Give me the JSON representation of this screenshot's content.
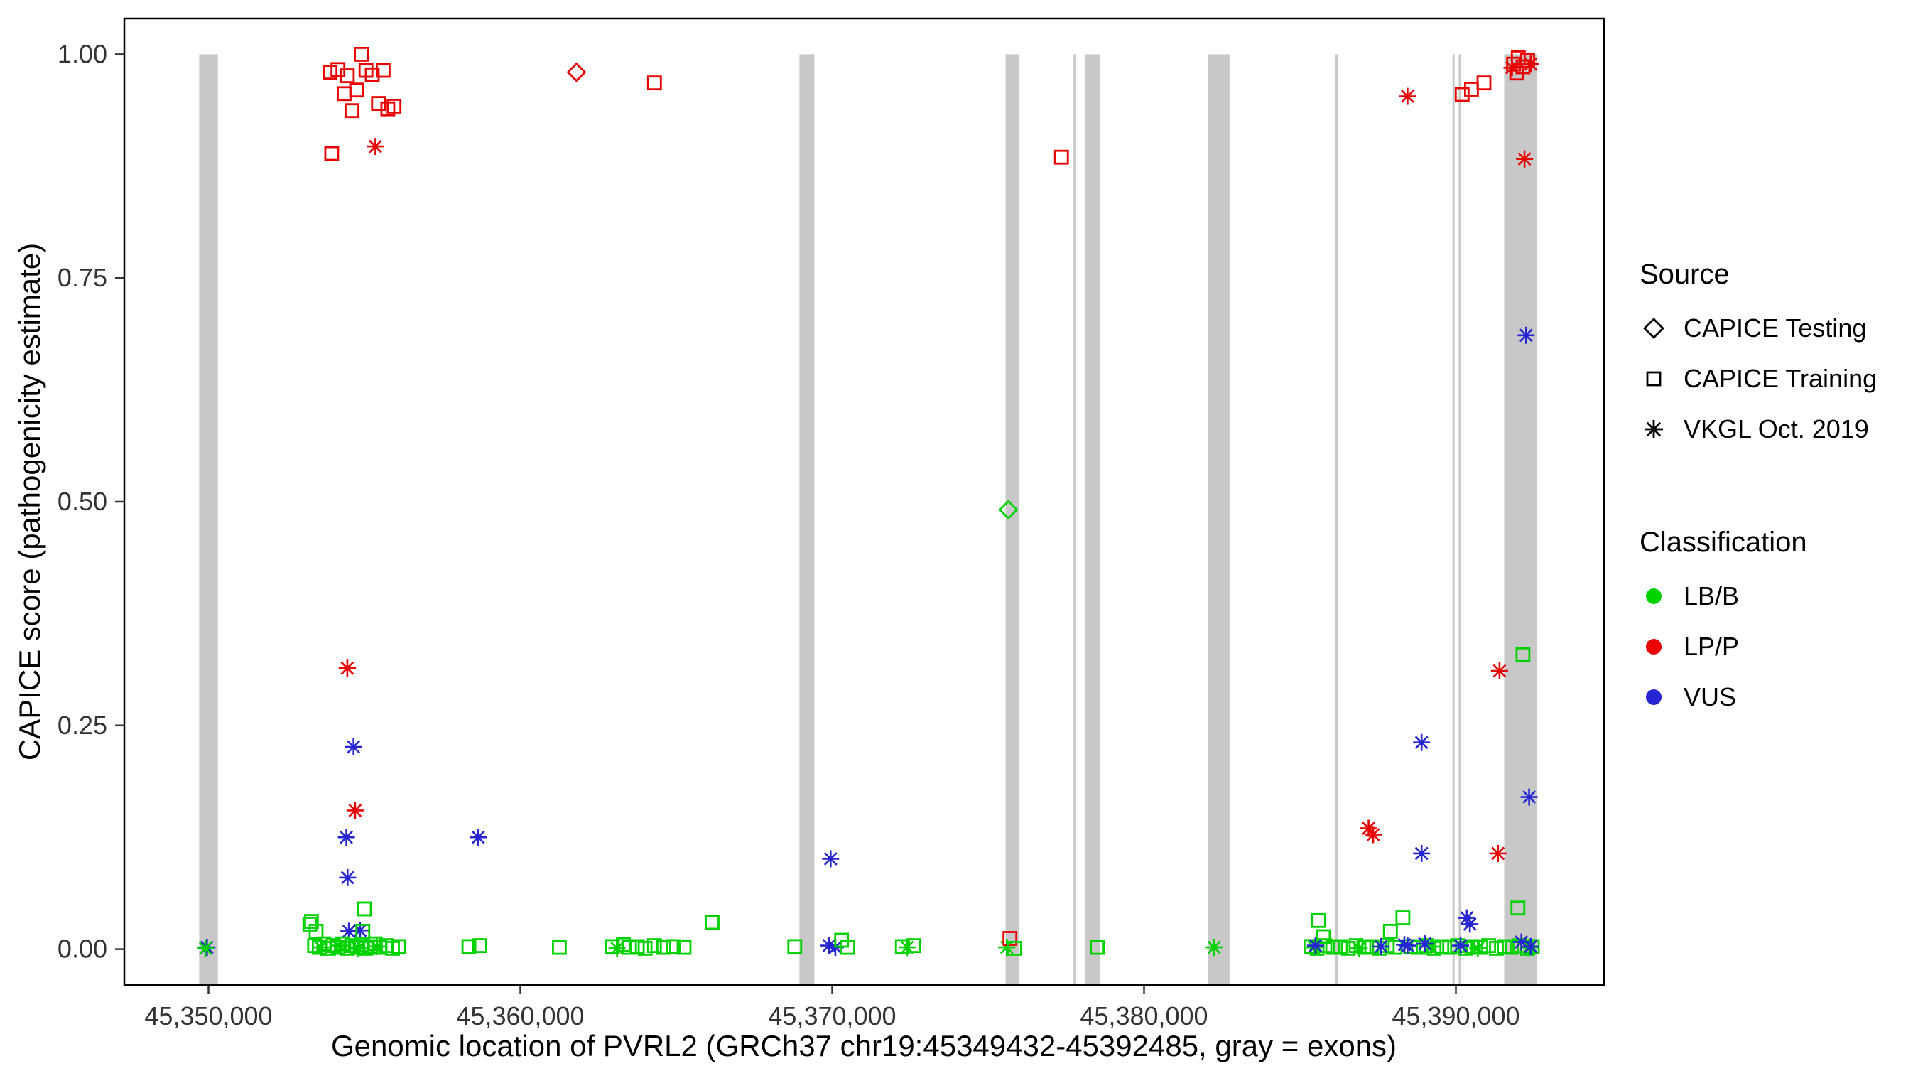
{
  "chart_data": {
    "type": "scatter",
    "title": "",
    "xlabel": "Genomic location of PVRL2 (GRCh37 chr19:45349432-45392485, gray = exons)",
    "ylabel": "CAPICE score (pathogenicity estimate)",
    "x_domain": [
      45347300,
      45394750
    ],
    "y_domain": [
      -0.04,
      1.04
    ],
    "x_ticks": [
      {
        "value": 45350000,
        "label": "45,350,000"
      },
      {
        "value": 45360000,
        "label": "45,360,000"
      },
      {
        "value": 45370000,
        "label": "45,370,000"
      },
      {
        "value": 45380000,
        "label": "45,380,000"
      },
      {
        "value": 45390000,
        "label": "45,390,000"
      }
    ],
    "y_ticks": [
      {
        "value": 0.0,
        "label": "0.00"
      },
      {
        "value": 0.25,
        "label": "0.25"
      },
      {
        "value": 0.5,
        "label": "0.50"
      },
      {
        "value": 0.75,
        "label": "0.75"
      },
      {
        "value": 1.0,
        "label": "1.00"
      }
    ],
    "colors": {
      "exon": "#C8C8C8",
      "LB/B": "#00D200",
      "LP/P": "#EA0000",
      "VUS": "#2525D2",
      "legend_marker": "#000000",
      "panel_border": "#000000",
      "tick_text": "#333333"
    },
    "legend": {
      "source": {
        "title": "Source",
        "items": [
          {
            "label": "CAPICE Testing",
            "marker": "diamond"
          },
          {
            "label": "CAPICE Training",
            "marker": "square"
          },
          {
            "label": "VKGL Oct. 2019",
            "marker": "asterisk"
          }
        ]
      },
      "classification": {
        "title": "Classification",
        "items": [
          {
            "label": "LB/B",
            "color": "#00D200"
          },
          {
            "label": "LP/P",
            "color": "#EA0000"
          },
          {
            "label": "VUS",
            "color": "#2525D2"
          }
        ]
      }
    },
    "exons": [
      [
        45349700,
        45350300
      ],
      [
        45368950,
        45369430
      ],
      [
        45375560,
        45376000
      ],
      [
        45377740,
        45377820
      ],
      [
        45378100,
        45378585
      ],
      [
        45382050,
        45382740
      ],
      [
        45386130,
        45386210
      ],
      [
        45389890,
        45389950
      ],
      [
        45390090,
        45390150
      ],
      [
        45391550,
        45392600
      ]
    ],
    "point_format": [
      "genomic_position",
      "capice_score",
      "source",
      "classification"
    ],
    "points": [
      [
        45353900,
        0.98,
        "training",
        "LP/P"
      ],
      [
        45354150,
        0.983,
        "training",
        "LP/P"
      ],
      [
        45354350,
        0.956,
        "training",
        "LP/P"
      ],
      [
        45354450,
        0.976,
        "training",
        "LP/P"
      ],
      [
        45354600,
        0.937,
        "training",
        "LP/P"
      ],
      [
        45354750,
        0.96,
        "training",
        "LP/P"
      ],
      [
        45354900,
        1.0,
        "training",
        "LP/P"
      ],
      [
        45355050,
        0.982,
        "training",
        "LP/P"
      ],
      [
        45355250,
        0.977,
        "training",
        "LP/P"
      ],
      [
        45355450,
        0.945,
        "training",
        "LP/P"
      ],
      [
        45355600,
        0.982,
        "training",
        "LP/P"
      ],
      [
        45355750,
        0.939,
        "training",
        "LP/P"
      ],
      [
        45355950,
        0.942,
        "training",
        "LP/P"
      ],
      [
        45353950,
        0.889,
        "training",
        "LP/P"
      ],
      [
        45355350,
        0.897,
        "vkgl",
        "LP/P"
      ],
      [
        45361800,
        0.98,
        "testing",
        "LP/P"
      ],
      [
        45364300,
        0.968,
        "training",
        "LP/P"
      ],
      [
        45377350,
        0.885,
        "training",
        "LP/P"
      ],
      [
        45375650,
        0.491,
        "testing",
        "LB/B"
      ],
      [
        45354450,
        0.314,
        "vkgl",
        "LP/P"
      ],
      [
        45354650,
        0.226,
        "vkgl",
        "VUS"
      ],
      [
        45354700,
        0.155,
        "vkgl",
        "LP/P"
      ],
      [
        45354420,
        0.125,
        "vkgl",
        "VUS"
      ],
      [
        45354460,
        0.08,
        "vkgl",
        "VUS"
      ],
      [
        45354500,
        0.02,
        "vkgl",
        "VUS"
      ],
      [
        45354860,
        0.021,
        "vkgl",
        "VUS"
      ],
      [
        45358650,
        0.125,
        "vkgl",
        "VUS"
      ],
      [
        45369950,
        0.101,
        "vkgl",
        "VUS"
      ],
      [
        45349950,
        0.002,
        "vkgl",
        "VUS"
      ],
      [
        45349900,
        0.001,
        "vkgl",
        "LB/B"
      ],
      [
        45353250,
        0.028,
        "training",
        "LB/B"
      ],
      [
        45353300,
        0.031,
        "training",
        "LB/B"
      ],
      [
        45353450,
        0.02,
        "training",
        "LB/B"
      ],
      [
        45355000,
        0.045,
        "training",
        "LB/B"
      ],
      [
        45354950,
        0.02,
        "training",
        "LB/B"
      ],
      [
        45353400,
        0.004,
        "training",
        "LB/B"
      ],
      [
        45353550,
        0.002,
        "training",
        "LB/B"
      ],
      [
        45353700,
        0.006,
        "training",
        "LB/B"
      ],
      [
        45353850,
        0.001,
        "training",
        "LB/B"
      ],
      [
        45354000,
        0.004,
        "training",
        "LB/B"
      ],
      [
        45354150,
        0.002,
        "training",
        "LB/B"
      ],
      [
        45354300,
        0.006,
        "training",
        "LB/B"
      ],
      [
        45354450,
        0.001,
        "training",
        "LB/B"
      ],
      [
        45354600,
        0.004,
        "training",
        "LB/B"
      ],
      [
        45354750,
        0.002,
        "training",
        "LB/B"
      ],
      [
        45354900,
        0.005,
        "training",
        "LB/B"
      ],
      [
        45355050,
        0.001,
        "training",
        "LB/B"
      ],
      [
        45355200,
        0.003,
        "training",
        "LB/B"
      ],
      [
        45355350,
        0.006,
        "training",
        "LB/B"
      ],
      [
        45355500,
        0.002,
        "training",
        "LB/B"
      ],
      [
        45355700,
        0.004,
        "training",
        "LB/B"
      ],
      [
        45355900,
        0.001,
        "training",
        "LB/B"
      ],
      [
        45356100,
        0.003,
        "training",
        "LB/B"
      ],
      [
        45353600,
        0.002,
        "vkgl",
        "LB/B"
      ],
      [
        45354200,
        0.004,
        "vkgl",
        "LB/B"
      ],
      [
        45354800,
        0.001,
        "vkgl",
        "LB/B"
      ],
      [
        45355400,
        0.003,
        "vkgl",
        "LB/B"
      ],
      [
        45358350,
        0.003,
        "training",
        "LB/B"
      ],
      [
        45358700,
        0.004,
        "training",
        "LB/B"
      ],
      [
        45361250,
        0.002,
        "training",
        "LB/B"
      ],
      [
        45362950,
        0.003,
        "training",
        "LB/B"
      ],
      [
        45363100,
        0.001,
        "vkgl",
        "LB/B"
      ],
      [
        45363300,
        0.005,
        "training",
        "LB/B"
      ],
      [
        45363500,
        0.002,
        "training",
        "LB/B"
      ],
      [
        45363750,
        0.003,
        "training",
        "LB/B"
      ],
      [
        45364000,
        0.001,
        "training",
        "LB/B"
      ],
      [
        45364300,
        0.004,
        "training",
        "LB/B"
      ],
      [
        45364600,
        0.002,
        "training",
        "LB/B"
      ],
      [
        45364900,
        0.003,
        "training",
        "LB/B"
      ],
      [
        45365250,
        0.002,
        "training",
        "LB/B"
      ],
      [
        45366150,
        0.03,
        "training",
        "LB/B"
      ],
      [
        45368800,
        0.003,
        "training",
        "LB/B"
      ],
      [
        45369900,
        0.004,
        "vkgl",
        "VUS"
      ],
      [
        45370100,
        0.002,
        "vkgl",
        "VUS"
      ],
      [
        45370300,
        0.01,
        "training",
        "LB/B"
      ],
      [
        45370500,
        0.002,
        "training",
        "LB/B"
      ],
      [
        45372250,
        0.003,
        "training",
        "LB/B"
      ],
      [
        45372400,
        0.002,
        "vkgl",
        "LB/B"
      ],
      [
        45372600,
        0.004,
        "training",
        "LB/B"
      ],
      [
        45375600,
        0.002,
        "vkgl",
        "LB/B"
      ],
      [
        45375700,
        0.012,
        "training",
        "LP/P"
      ],
      [
        45375850,
        0.001,
        "training",
        "LB/B"
      ],
      [
        45378500,
        0.002,
        "training",
        "LB/B"
      ],
      [
        45382250,
        0.002,
        "vkgl",
        "LB/B"
      ],
      [
        45388450,
        0.953,
        "vkgl",
        "LP/P"
      ],
      [
        45390200,
        0.955,
        "training",
        "LP/P"
      ],
      [
        45390500,
        0.961,
        "training",
        "LP/P"
      ],
      [
        45390900,
        0.968,
        "training",
        "LP/P"
      ],
      [
        45391850,
        0.989,
        "training",
        "LP/P"
      ],
      [
        45392000,
        0.996,
        "training",
        "LP/P"
      ],
      [
        45392150,
        0.986,
        "training",
        "LP/P"
      ],
      [
        45392300,
        0.993,
        "training",
        "LP/P"
      ],
      [
        45391950,
        0.979,
        "training",
        "LP/P"
      ],
      [
        45392400,
        0.989,
        "vkgl",
        "LP/P"
      ],
      [
        45391800,
        0.985,
        "vkgl",
        "LP/P"
      ],
      [
        45392200,
        0.883,
        "vkgl",
        "LP/P"
      ],
      [
        45392250,
        0.686,
        "vkgl",
        "VUS"
      ],
      [
        45392150,
        0.329,
        "training",
        "LB/B"
      ],
      [
        45391400,
        0.311,
        "vkgl",
        "LP/P"
      ],
      [
        45392350,
        0.17,
        "vkgl",
        "VUS"
      ],
      [
        45388900,
        0.231,
        "vkgl",
        "VUS"
      ],
      [
        45387200,
        0.135,
        "vkgl",
        "LP/P"
      ],
      [
        45387350,
        0.128,
        "vkgl",
        "LP/P"
      ],
      [
        45388900,
        0.107,
        "vkgl",
        "VUS"
      ],
      [
        45391350,
        0.107,
        "vkgl",
        "LP/P"
      ],
      [
        45390350,
        0.035,
        "vkgl",
        "VUS"
      ],
      [
        45390450,
        0.028,
        "vkgl",
        "VUS"
      ],
      [
        45391990,
        0.046,
        "training",
        "LB/B"
      ],
      [
        45385600,
        0.032,
        "training",
        "LB/B"
      ],
      [
        45385750,
        0.014,
        "training",
        "LB/B"
      ],
      [
        45388300,
        0.035,
        "training",
        "LB/B"
      ],
      [
        45387900,
        0.02,
        "training",
        "LB/B"
      ],
      [
        45385350,
        0.003,
        "training",
        "LB/B"
      ],
      [
        45385550,
        0.001,
        "training",
        "LB/B"
      ],
      [
        45385800,
        0.004,
        "training",
        "LB/B"
      ],
      [
        45386050,
        0.002,
        "training",
        "LB/B"
      ],
      [
        45386300,
        0.003,
        "training",
        "LB/B"
      ],
      [
        45386550,
        0.001,
        "training",
        "LB/B"
      ],
      [
        45386800,
        0.004,
        "training",
        "LB/B"
      ],
      [
        45387050,
        0.002,
        "training",
        "LB/B"
      ],
      [
        45387300,
        0.003,
        "training",
        "LB/B"
      ],
      [
        45387550,
        0.001,
        "training",
        "LB/B"
      ],
      [
        45387800,
        0.004,
        "training",
        "LB/B"
      ],
      [
        45388050,
        0.002,
        "training",
        "LB/B"
      ],
      [
        45388550,
        0.003,
        "training",
        "LB/B"
      ],
      [
        45388800,
        0.002,
        "training",
        "LB/B"
      ],
      [
        45389050,
        0.004,
        "training",
        "LB/B"
      ],
      [
        45389300,
        0.001,
        "training",
        "LB/B"
      ],
      [
        45389550,
        0.003,
        "training",
        "LB/B"
      ],
      [
        45389800,
        0.002,
        "training",
        "LB/B"
      ],
      [
        45390050,
        0.004,
        "training",
        "LB/B"
      ],
      [
        45390300,
        0.001,
        "training",
        "LB/B"
      ],
      [
        45390550,
        0.003,
        "training",
        "LB/B"
      ],
      [
        45390800,
        0.002,
        "training",
        "LB/B"
      ],
      [
        45391050,
        0.004,
        "training",
        "LB/B"
      ],
      [
        45391300,
        0.001,
        "training",
        "LB/B"
      ],
      [
        45391550,
        0.003,
        "training",
        "LB/B"
      ],
      [
        45391800,
        0.002,
        "training",
        "LB/B"
      ],
      [
        45392050,
        0.004,
        "training",
        "LB/B"
      ],
      [
        45392300,
        0.001,
        "training",
        "LB/B"
      ],
      [
        45392450,
        0.003,
        "training",
        "LB/B"
      ],
      [
        45385450,
        0.002,
        "vkgl",
        "LB/B"
      ],
      [
        45386900,
        0.001,
        "vkgl",
        "LB/B"
      ],
      [
        45389200,
        0.003,
        "vkgl",
        "LB/B"
      ],
      [
        45390700,
        0.001,
        "vkgl",
        "LB/B"
      ],
      [
        45392350,
        0.002,
        "vkgl",
        "LB/B"
      ],
      [
        45385500,
        0.004,
        "vkgl",
        "VUS"
      ],
      [
        45387600,
        0.003,
        "vkgl",
        "VUS"
      ],
      [
        45388350,
        0.005,
        "vkgl",
        "VUS"
      ],
      [
        45390150,
        0.004,
        "vkgl",
        "VUS"
      ],
      [
        45392100,
        0.008,
        "vkgl",
        "VUS"
      ],
      [
        45392400,
        0.003,
        "vkgl",
        "VUS"
      ],
      [
        45388450,
        0.004,
        "vkgl",
        "VUS"
      ],
      [
        45389000,
        0.006,
        "vkgl",
        "VUS"
      ]
    ]
  }
}
